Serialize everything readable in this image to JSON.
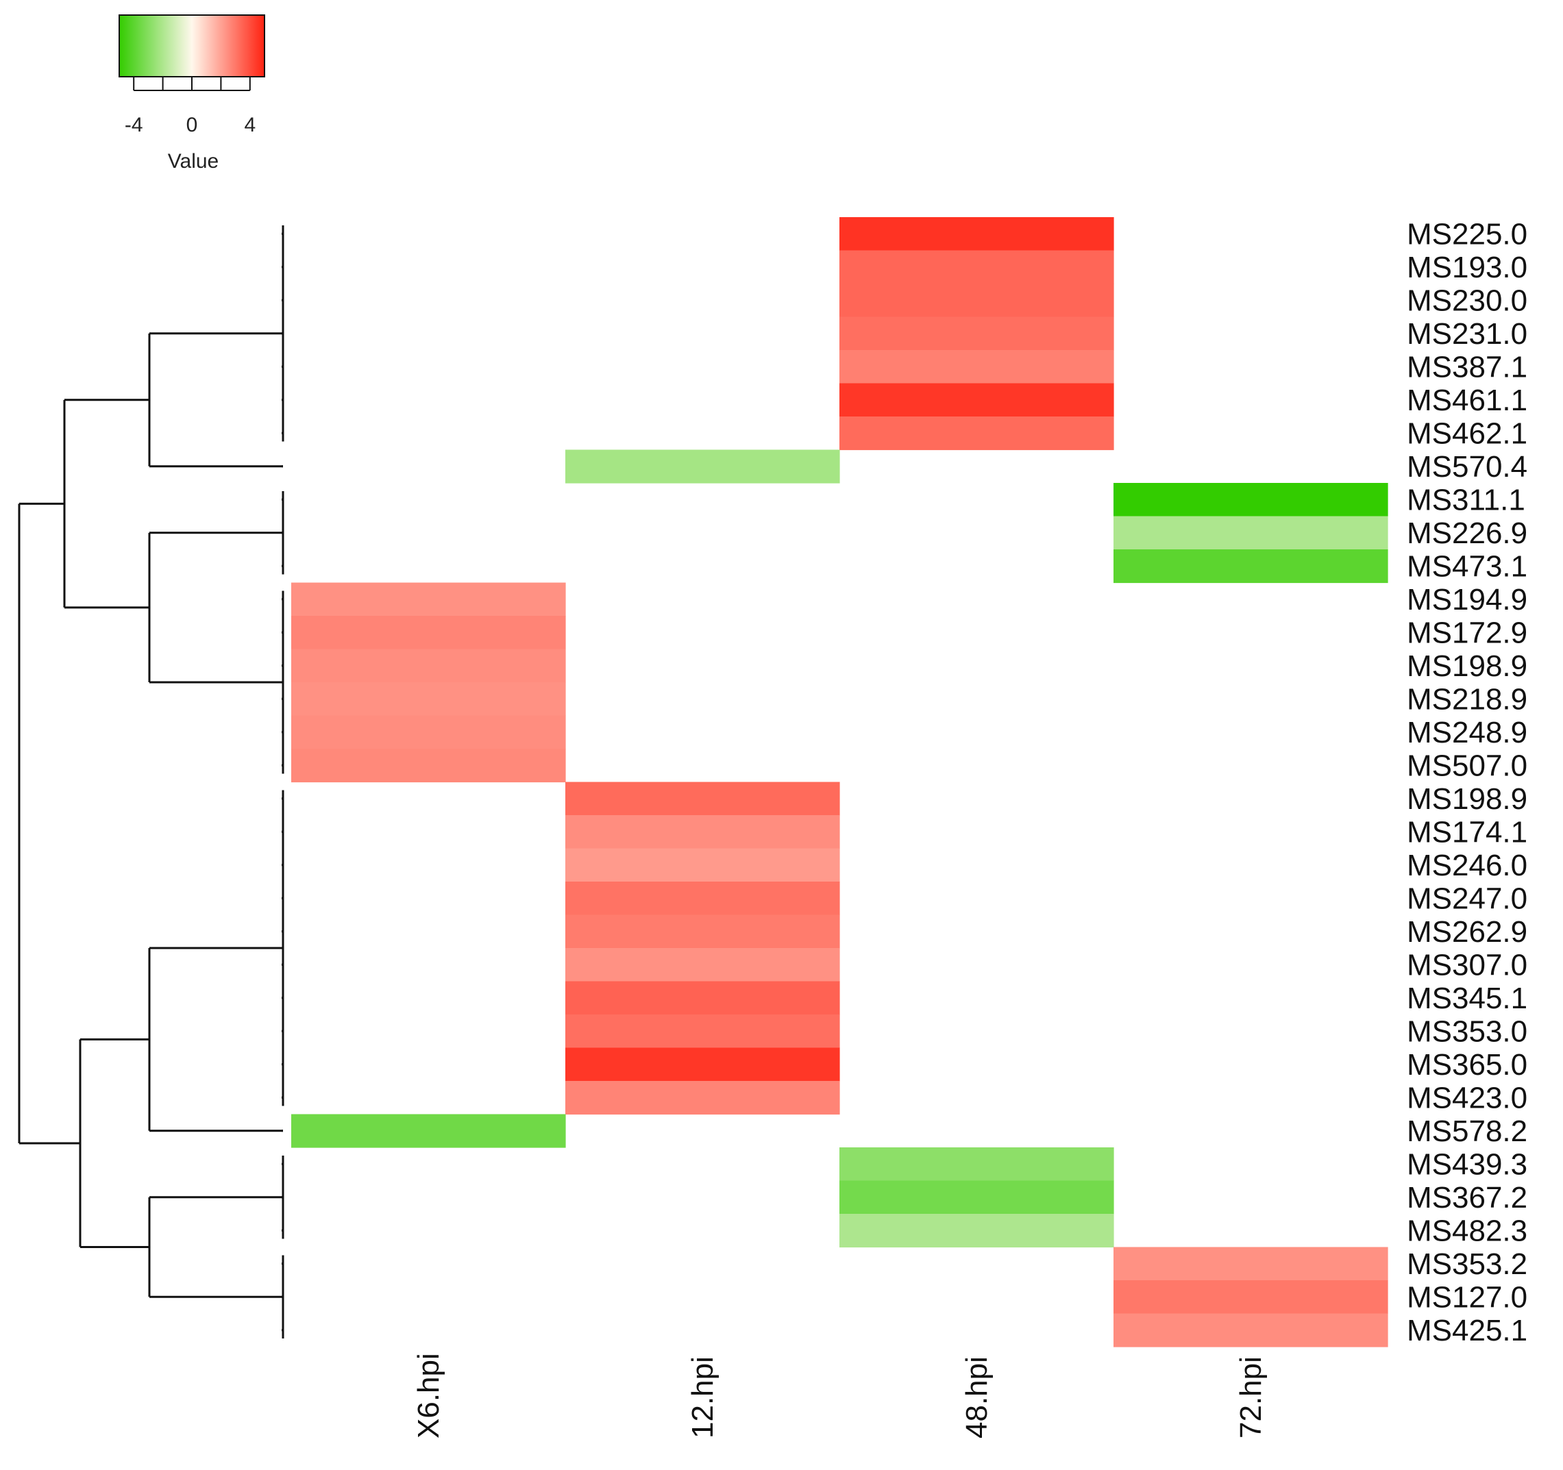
{
  "chart_data": {
    "type": "heatmap",
    "columns": [
      "X6.hpi",
      "12.hpi",
      "48.hpi",
      "72.hpi"
    ],
    "rows": [
      {
        "label": "MS225.0",
        "values": [
          null,
          null,
          4.6,
          null
        ]
      },
      {
        "label": "MS193.0",
        "values": [
          null,
          null,
          3.4,
          null
        ]
      },
      {
        "label": "MS230.0",
        "values": [
          null,
          null,
          3.4,
          null
        ]
      },
      {
        "label": "MS231.0",
        "values": [
          null,
          null,
          3.2,
          null
        ]
      },
      {
        "label": "MS387.1",
        "values": [
          null,
          null,
          2.8,
          null
        ]
      },
      {
        "label": "MS461.1",
        "values": [
          null,
          null,
          4.5,
          null
        ]
      },
      {
        "label": "MS462.1",
        "values": [
          null,
          null,
          3.3,
          null
        ]
      },
      {
        "label": "MS570.4",
        "values": [
          null,
          -2.2,
          null,
          null
        ]
      },
      {
        "label": "MS311.1",
        "values": [
          null,
          null,
          null,
          -5.2
        ]
      },
      {
        "label": "MS226.9",
        "values": [
          null,
          null,
          null,
          -2.0
        ]
      },
      {
        "label": "MS473.1",
        "values": [
          null,
          null,
          null,
          -4.0
        ]
      },
      {
        "label": "MS194.9",
        "values": [
          2.4,
          null,
          null,
          null
        ]
      },
      {
        "label": "MS172.9",
        "values": [
          2.7,
          null,
          null,
          null
        ]
      },
      {
        "label": "MS198.9",
        "values": [
          2.5,
          null,
          null,
          null
        ]
      },
      {
        "label": "MS218.9",
        "values": [
          2.4,
          null,
          null,
          null
        ]
      },
      {
        "label": "MS248.9",
        "values": [
          2.5,
          null,
          null,
          null
        ]
      },
      {
        "label": "MS507.0",
        "values": [
          2.6,
          null,
          null,
          null
        ]
      },
      {
        "label": "MS198.9",
        "values": [
          null,
          3.3,
          null,
          null
        ]
      },
      {
        "label": "MS174.1",
        "values": [
          null,
          2.5,
          null,
          null
        ]
      },
      {
        "label": "MS246.0",
        "values": [
          null,
          2.2,
          null,
          null
        ]
      },
      {
        "label": "MS247.0",
        "values": [
          null,
          3.1,
          null,
          null
        ]
      },
      {
        "label": "MS262.9",
        "values": [
          null,
          2.9,
          null,
          null
        ]
      },
      {
        "label": "MS307.0",
        "values": [
          null,
          2.4,
          null,
          null
        ]
      },
      {
        "label": "MS345.1",
        "values": [
          null,
          3.5,
          null,
          null
        ]
      },
      {
        "label": "MS353.0",
        "values": [
          null,
          3.2,
          null,
          null
        ]
      },
      {
        "label": "MS365.0",
        "values": [
          null,
          4.5,
          null,
          null
        ]
      },
      {
        "label": "MS423.0",
        "values": [
          null,
          2.7,
          null,
          null
        ]
      },
      {
        "label": "MS578.2",
        "values": [
          -3.5,
          null,
          null,
          null
        ]
      },
      {
        "label": "MS439.3",
        "values": [
          null,
          null,
          -2.8,
          null
        ]
      },
      {
        "label": "MS367.2",
        "values": [
          null,
          null,
          -3.4,
          null
        ]
      },
      {
        "label": "MS482.3",
        "values": [
          null,
          null,
          -2.0,
          null
        ]
      },
      {
        "label": "MS353.2",
        "values": [
          null,
          null,
          null,
          2.4
        ]
      },
      {
        "label": "MS127.0",
        "values": [
          null,
          null,
          null,
          3.0
        ]
      },
      {
        "label": "MS425.1",
        "values": [
          null,
          null,
          null,
          2.5
        ]
      }
    ],
    "color_key": {
      "title": "Value",
      "range": [
        -5,
        5
      ],
      "tick_labels": [
        "-4",
        "0",
        "4"
      ],
      "low_color": "#33cc00",
      "mid_color": "#fff8ec",
      "high_color": "#ff2211"
    },
    "dendrogram": {
      "leaf_groups": [
        {
          "name": "g1",
          "rows": [
            0,
            6
          ]
        },
        {
          "name": "g2",
          "rows": [
            7,
            7
          ]
        },
        {
          "name": "g3",
          "rows": [
            8,
            10
          ]
        },
        {
          "name": "g4",
          "rows": [
            11,
            16
          ]
        },
        {
          "name": "g5",
          "rows": [
            17,
            26
          ]
        },
        {
          "name": "g6",
          "rows": [
            27,
            27
          ]
        },
        {
          "name": "g7",
          "rows": [
            28,
            30
          ]
        },
        {
          "name": "g8",
          "rows": [
            31,
            33
          ]
        }
      ]
    },
    "title": "",
    "xlabel": "",
    "ylabel": ""
  }
}
